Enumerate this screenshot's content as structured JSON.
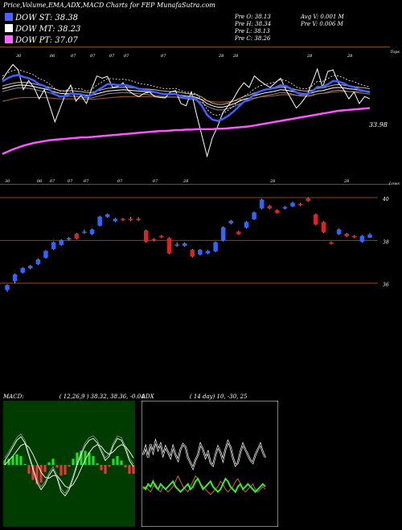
{
  "header": {
    "title": "Price,Volume,EMA,ADX,MACD Charts for FEP MunafaSutra.com"
  },
  "legend": [
    {
      "label": "DOW ST: 38.38",
      "color": "#4a63ff"
    },
    {
      "label": "DOW MT: 38.23",
      "color": "#ffffff"
    },
    {
      "label": "DOW PT: 37.07",
      "color": "#ff66ff"
    }
  ],
  "ohlc": {
    "open": "Pre  O: 38.13",
    "high": "Pre  H: 38.34",
    "low": "Pre  L: 38.13",
    "close": "Pre  C: 38.26",
    "avg_vol": "Avg V: 0.001 M",
    "pre_vol": "Pre  V: 0.006  M"
  },
  "colors": {
    "up": "#2f66ff",
    "down": "#dd2222",
    "st": "#3f5fff",
    "pt": "#ff55ff",
    "level": "#8b4513"
  },
  "chart_data": [
    {
      "type": "line",
      "name": "ema-panel",
      "top_label": "Tops",
      "bottom_label": "Lows",
      "last_value_label": "33.98",
      "top_ticks": [
        "30",
        "06",
        "07",
        "07",
        "07",
        "07",
        "07",
        "28",
        "28",
        "28",
        "28"
      ],
      "bottom_ticks": [
        "30",
        "06",
        "07",
        "07",
        "07",
        "07",
        "07",
        "28",
        "28",
        "28"
      ],
      "price": [
        40.2,
        42.0,
        43.5,
        42.3,
        38.0,
        40.0,
        38.5,
        36.0,
        38.0,
        34.5,
        31.0,
        34.0,
        37.0,
        39.0,
        35.5,
        36.8,
        35.0,
        38.2,
        41.0,
        40.5,
        40.9,
        38.5,
        38.7,
        39.5,
        37.8,
        37.0,
        36.5,
        37.2,
        37.5,
        36.5,
        36.3,
        36.2,
        37.5,
        37.8,
        35.0,
        34.5,
        37.5,
        32.5,
        28.0,
        23.5,
        27.5,
        30.0,
        33.0,
        34.5,
        36.0,
        38.0,
        39.5,
        38.5,
        41.0,
        40.0,
        39.2,
        38.5,
        39.5,
        40.5,
        38.0,
        36.0,
        34.0,
        35.2,
        36.8,
        39.5,
        42.5,
        38.5,
        42.0,
        42.3,
        39.5,
        38.0,
        36.0,
        37.5,
        35.0,
        36.5,
        36.0
      ],
      "st": [
        39.8,
        40.5,
        41.0,
        41.2,
        40.8,
        40.5,
        40.0,
        39.2,
        38.8,
        38.0,
        37.0,
        36.5,
        36.6,
        37.2,
        37.0,
        37.0,
        36.5,
        36.8,
        37.8,
        38.5,
        39.2,
        39.2,
        39.0,
        39.1,
        38.9,
        38.6,
        38.2,
        38.0,
        37.8,
        37.5,
        37.2,
        37.0,
        37.0,
        37.1,
        36.6,
        36.2,
        36.3,
        35.8,
        34.5,
        32.5,
        31.5,
        31.2,
        31.6,
        32.3,
        33.2,
        34.3,
        35.4,
        36.0,
        37.0,
        37.6,
        38.0,
        38.2,
        38.5,
        39.0,
        38.8,
        38.2,
        37.4,
        37.0,
        37.0,
        37.6,
        38.6,
        38.6,
        39.2,
        39.9,
        39.8,
        39.4,
        38.8,
        38.6,
        38.0,
        37.7,
        37.4
      ],
      "mt": [
        38.2,
        38.5,
        38.8,
        39.0,
        39.0,
        38.9,
        38.7,
        38.4,
        38.2,
        37.9,
        37.5,
        37.2,
        37.1,
        37.2,
        37.1,
        37.0,
        36.8,
        36.8,
        37.1,
        37.4,
        37.7,
        37.8,
        37.9,
        38.0,
        37.9,
        37.8,
        37.7,
        37.6,
        37.5,
        37.4,
        37.2,
        37.1,
        37.0,
        37.0,
        36.8,
        36.6,
        36.5,
        36.3,
        35.8,
        35.0,
        34.5,
        34.2,
        34.2,
        34.5,
        34.9,
        35.4,
        35.9,
        36.2,
        36.7,
        37.0,
        37.3,
        37.5,
        37.7,
        38.0,
        37.9,
        37.7,
        37.4,
        37.2,
        37.1,
        37.3,
        37.7,
        37.8,
        38.1,
        38.4,
        38.5,
        38.4,
        38.2,
        38.1,
        37.9,
        37.8,
        37.6
      ],
      "lt": [
        35.5,
        35.7,
        36.0,
        36.2,
        36.3,
        36.3,
        36.3,
        36.3,
        36.3,
        36.2,
        36.1,
        36.0,
        36.0,
        36.0,
        36.0,
        36.0,
        35.9,
        35.9,
        36.0,
        36.1,
        36.2,
        36.3,
        36.4,
        36.5,
        36.5,
        36.5,
        36.5,
        36.5,
        36.5,
        36.5,
        36.4,
        36.4,
        36.4,
        36.4,
        36.3,
        36.2,
        36.2,
        36.1,
        35.9,
        35.6,
        35.4,
        35.3,
        35.3,
        35.4,
        35.5,
        35.7,
        35.9,
        36.0,
        36.2,
        36.4,
        36.5,
        36.6,
        36.7,
        36.9,
        36.9,
        36.9,
        36.8,
        36.8,
        36.8,
        36.9,
        37.1,
        37.2,
        37.3,
        37.5,
        37.6,
        37.6,
        37.6,
        37.6,
        37.6,
        37.6,
        37.6
      ],
      "pt": [
        24.0,
        24.5,
        25.0,
        25.4,
        25.8,
        26.1,
        26.4,
        26.6,
        26.8,
        27.0,
        27.1,
        27.2,
        27.3,
        27.4,
        27.5,
        27.6,
        27.6,
        27.7,
        27.8,
        27.9,
        28.0,
        28.1,
        28.2,
        28.3,
        28.4,
        28.5,
        28.6,
        28.7,
        28.8,
        28.9,
        29.0,
        29.0,
        29.1,
        29.2,
        29.2,
        29.3,
        29.3,
        29.4,
        29.4,
        29.4,
        29.4,
        29.5,
        29.5,
        29.6,
        29.7,
        29.8,
        29.9,
        30.0,
        30.2,
        30.4,
        30.6,
        30.8,
        31.0,
        31.2,
        31.4,
        31.6,
        31.8,
        32.0,
        32.2,
        32.4,
        32.6,
        32.8,
        33.0,
        33.2,
        33.4,
        33.5,
        33.6,
        33.7,
        33.8,
        33.9,
        34.0
      ]
    },
    {
      "type": "candlestick",
      "name": "price-panel",
      "y_ticks": [
        "40",
        "38",
        "36"
      ],
      "y_tick_values": [
        40,
        38,
        36
      ],
      "ylim": [
        35.2,
        40.3
      ],
      "candles": [
        {
          "o": 35.7,
          "c": 35.9,
          "h": 35.95,
          "l": 35.6
        },
        {
          "o": 36.1,
          "c": 36.4,
          "h": 36.45,
          "l": 36.0
        },
        {
          "o": 36.5,
          "c": 36.7,
          "h": 36.75,
          "l": 36.45
        },
        {
          "o": 36.7,
          "c": 36.8,
          "h": 36.85,
          "l": 36.65
        },
        {
          "o": 36.9,
          "c": 37.1,
          "h": 37.15,
          "l": 36.85
        },
        {
          "o": 37.2,
          "c": 37.5,
          "h": 37.55,
          "l": 37.15
        },
        {
          "o": 37.6,
          "c": 37.9,
          "h": 37.95,
          "l": 37.55
        },
        {
          "o": 37.8,
          "c": 38.0,
          "h": 38.05,
          "l": 37.75
        },
        {
          "o": 38.05,
          "c": 38.1,
          "h": 38.15,
          "l": 38.0
        },
        {
          "o": 38.3,
          "c": 38.1,
          "h": 38.35,
          "l": 38.05
        },
        {
          "o": 38.4,
          "c": 38.4,
          "h": 38.5,
          "l": 38.3
        },
        {
          "o": 38.3,
          "c": 38.5,
          "h": 38.55,
          "l": 38.25
        },
        {
          "o": 38.7,
          "c": 39.1,
          "h": 39.15,
          "l": 38.65
        },
        {
          "o": 39.1,
          "c": 39.2,
          "h": 39.25,
          "l": 39.05
        },
        {
          "o": 38.9,
          "c": 39.0,
          "h": 39.05,
          "l": 38.85
        },
        {
          "o": 39.0,
          "c": 38.95,
          "h": 39.05,
          "l": 38.9
        },
        {
          "o": 39.0,
          "c": 38.95,
          "h": 39.1,
          "l": 38.9
        },
        {
          "o": 39.0,
          "c": 38.98,
          "h": 39.08,
          "l": 38.9
        },
        {
          "o": 38.45,
          "c": 37.95,
          "h": 38.5,
          "l": 37.9
        },
        {
          "o": 38.05,
          "c": 38.0,
          "h": 38.1,
          "l": 37.95
        },
        {
          "o": 38.2,
          "c": 38.15,
          "h": 38.25,
          "l": 38.1
        },
        {
          "o": 38.1,
          "c": 37.4,
          "h": 38.15,
          "l": 37.35
        },
        {
          "o": 37.8,
          "c": 37.8,
          "h": 37.9,
          "l": 37.7
        },
        {
          "o": 37.75,
          "c": 37.85,
          "h": 37.9,
          "l": 37.7
        },
        {
          "o": 37.55,
          "c": 37.25,
          "h": 37.6,
          "l": 37.2
        },
        {
          "o": 37.35,
          "c": 37.55,
          "h": 37.6,
          "l": 37.3
        },
        {
          "o": 37.4,
          "c": 37.5,
          "h": 37.55,
          "l": 37.35
        },
        {
          "o": 37.5,
          "c": 37.9,
          "h": 37.95,
          "l": 37.45
        },
        {
          "o": 38.0,
          "c": 38.6,
          "h": 38.65,
          "l": 37.95
        },
        {
          "o": 38.8,
          "c": 38.9,
          "h": 38.95,
          "l": 38.75
        },
        {
          "o": 38.4,
          "c": 38.3,
          "h": 38.45,
          "l": 38.25
        },
        {
          "o": 38.6,
          "c": 38.85,
          "h": 38.9,
          "l": 38.55
        },
        {
          "o": 39.0,
          "c": 39.3,
          "h": 39.35,
          "l": 38.95
        },
        {
          "o": 39.5,
          "c": 39.9,
          "h": 39.95,
          "l": 39.45
        },
        {
          "o": 39.6,
          "c": 39.5,
          "h": 39.65,
          "l": 39.45
        },
        {
          "o": 39.4,
          "c": 39.3,
          "h": 39.45,
          "l": 39.25
        },
        {
          "o": 39.5,
          "c": 39.55,
          "h": 39.6,
          "l": 39.45
        },
        {
          "o": 39.6,
          "c": 39.75,
          "h": 39.8,
          "l": 39.55
        },
        {
          "o": 39.7,
          "c": 39.65,
          "h": 39.75,
          "l": 39.6
        },
        {
          "o": 39.95,
          "c": 39.85,
          "h": 40.0,
          "l": 39.8
        },
        {
          "o": 39.2,
          "c": 38.75,
          "h": 39.25,
          "l": 38.7
        },
        {
          "o": 38.85,
          "c": 38.4,
          "h": 38.9,
          "l": 38.35
        },
        {
          "o": 37.9,
          "c": 37.85,
          "h": 37.95,
          "l": 37.8
        },
        {
          "o": 38.3,
          "c": 38.5,
          "h": 38.55,
          "l": 38.25
        },
        {
          "o": 38.3,
          "c": 38.2,
          "h": 38.35,
          "l": 38.15
        },
        {
          "o": 38.2,
          "c": 38.15,
          "h": 38.25,
          "l": 38.1
        },
        {
          "o": 37.95,
          "c": 38.2,
          "h": 38.25,
          "l": 37.9
        },
        {
          "o": 38.13,
          "c": 38.26,
          "h": 38.34,
          "l": 38.13
        }
      ]
    },
    {
      "type": "line",
      "name": "macd-panel",
      "title": "MACD:",
      "params": "( 12,26,9 ) 38.32,  38.36,  -0.04",
      "macd": [
        0.05,
        0.12,
        0.2,
        0.28,
        0.32,
        0.25,
        0.1,
        -0.05,
        -0.2,
        -0.28,
        -0.22,
        -0.12,
        -0.05,
        -0.15,
        -0.3,
        -0.35,
        -0.28,
        -0.15,
        0.0,
        0.12,
        0.22,
        0.28,
        0.3,
        0.25,
        0.15,
        0.05,
        0.1,
        0.22,
        0.3,
        0.28,
        0.18,
        0.05,
        -0.02
      ],
      "signal": [
        0.0,
        0.05,
        0.1,
        0.16,
        0.22,
        0.24,
        0.2,
        0.12,
        0.02,
        -0.08,
        -0.14,
        -0.15,
        -0.12,
        -0.12,
        -0.18,
        -0.24,
        -0.26,
        -0.22,
        -0.14,
        -0.04,
        0.06,
        0.14,
        0.2,
        0.23,
        0.21,
        0.15,
        0.12,
        0.15,
        0.2,
        0.23,
        0.21,
        0.15,
        0.08
      ],
      "hist": [
        0.05,
        0.07,
        0.1,
        0.12,
        0.1,
        0.01,
        -0.1,
        -0.17,
        -0.22,
        -0.2,
        -0.08,
        0.03,
        0.07,
        -0.03,
        -0.12,
        -0.11,
        -0.02,
        0.07,
        0.14,
        0.16,
        0.16,
        0.14,
        0.1,
        0.02,
        -0.06,
        -0.1,
        -0.02,
        0.07,
        0.1,
        0.05,
        -0.03,
        -0.1,
        -0.1
      ]
    },
    {
      "type": "line",
      "name": "adx-panel",
      "title": "ADX",
      "params": "( 14  day) 10,  -30,  25",
      "adx": [
        22,
        25,
        21,
        26,
        23,
        27,
        24,
        26,
        22,
        25,
        23,
        21,
        25,
        22,
        20,
        24,
        26,
        25,
        21,
        19,
        17,
        20,
        22,
        26,
        24,
        21,
        23,
        19,
        18,
        22,
        25,
        23,
        20,
        24,
        27,
        25,
        21,
        18,
        19,
        23,
        26,
        24,
        22,
        20,
        19,
        22,
        24,
        26,
        23,
        21
      ],
      "plus_di": [
        10,
        9,
        11,
        10,
        12,
        10,
        9,
        11,
        10,
        9,
        10,
        11,
        12,
        10,
        9,
        8,
        9,
        10,
        11,
        9,
        10,
        12,
        13,
        11,
        9,
        10,
        11,
        12,
        10,
        9,
        8,
        9,
        11,
        13,
        12,
        10,
        9,
        8,
        10,
        11,
        9,
        10,
        11,
        10,
        9,
        8,
        9,
        10,
        11,
        10
      ],
      "minus_di": [
        9,
        10,
        9,
        8,
        10,
        11,
        9,
        8,
        10,
        9,
        8,
        9,
        10,
        12,
        14,
        12,
        10,
        9,
        8,
        10,
        12,
        14,
        13,
        11,
        10,
        9,
        8,
        7,
        8,
        9,
        10,
        12,
        11,
        9,
        8,
        9,
        10,
        12,
        13,
        11,
        9,
        8,
        9,
        10,
        11,
        9,
        8,
        9,
        10,
        9
      ]
    }
  ]
}
